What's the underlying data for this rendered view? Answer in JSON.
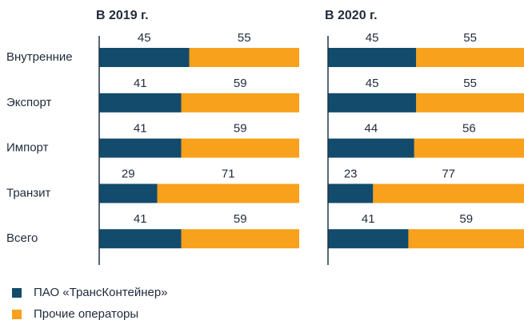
{
  "chart_data": [
    {
      "type": "stacked_barh",
      "title": "В 2019 г.",
      "categories": [
        "Внутренние",
        "Экспорт",
        "Импорт",
        "Транзит",
        "Всего"
      ],
      "xlim": [
        0,
        100
      ],
      "series": [
        {
          "name": "ПАО «ТрансКонтейнер»",
          "color": "#124b6c",
          "values": [
            45,
            41,
            41,
            29,
            41
          ]
        },
        {
          "name": "Прочие операторы",
          "color": "#f8a11c",
          "values": [
            55,
            59,
            59,
            71,
            59
          ]
        }
      ]
    },
    {
      "type": "stacked_barh",
      "title": "В 2020 г.",
      "xlim": [
        0,
        100
      ],
      "series": [
        {
          "values": [
            45,
            45,
            44,
            23,
            41
          ]
        },
        {
          "values": [
            55,
            55,
            56,
            77,
            59
          ]
        }
      ]
    }
  ]
}
